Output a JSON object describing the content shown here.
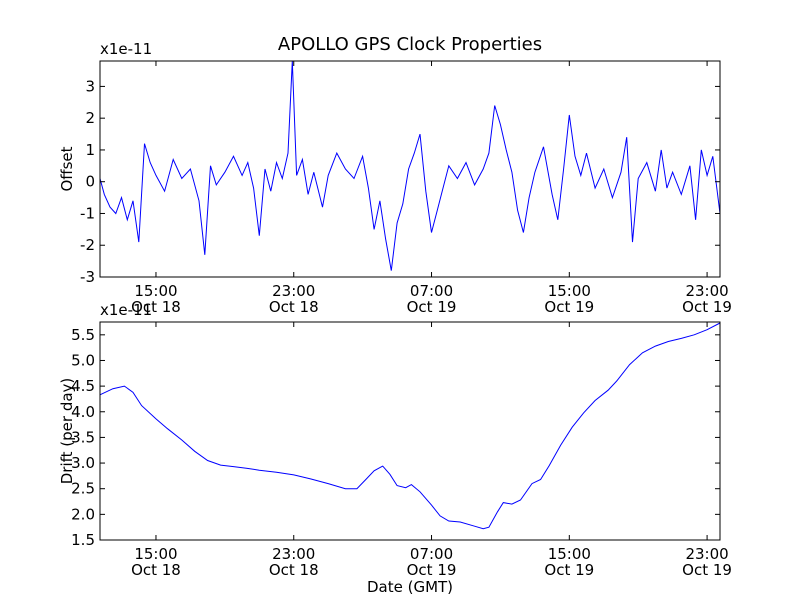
{
  "figure": {
    "title": "APOLLO GPS Clock Properties",
    "line_color": "#0000ff",
    "background": "#ffffff"
  },
  "chart_data": [
    {
      "type": "line",
      "ylabel": "Offset",
      "xlabel": "",
      "y_multiplier": "x1e-11",
      "x_range": [
        "Oct 18 11:45",
        "Oct 19 23:45"
      ],
      "ylim": [
        -3,
        3.8
      ],
      "x_ticks": [
        {
          "time": "Oct 18 15:00",
          "time_label": "15:00",
          "date_label": "Oct 18"
        },
        {
          "time": "Oct 18 23:00",
          "time_label": "23:00",
          "date_label": "Oct 18"
        },
        {
          "time": "Oct 19 07:00",
          "time_label": "07:00",
          "date_label": "Oct 19"
        },
        {
          "time": "Oct 19 15:00",
          "time_label": "15:00",
          "date_label": "Oct 19"
        },
        {
          "time": "Oct 19 23:00",
          "time_label": "23:00",
          "date_label": "Oct 19"
        }
      ],
      "y_ticks": [
        "-3",
        "-2",
        "-1",
        "0",
        "1",
        "2",
        "3"
      ],
      "series": [
        {
          "color": "#0000ff",
          "points": [
            {
              "t": "Oct 18 11:45",
              "y": 0.1
            },
            {
              "t": "Oct 18 12:00",
              "y": -0.4
            },
            {
              "t": "Oct 18 12:20",
              "y": -0.8
            },
            {
              "t": "Oct 18 12:40",
              "y": -1.0
            },
            {
              "t": "Oct 18 13:00",
              "y": -0.5
            },
            {
              "t": "Oct 18 13:20",
              "y": -1.2
            },
            {
              "t": "Oct 18 13:40",
              "y": -0.6
            },
            {
              "t": "Oct 18 14:00",
              "y": -1.9
            },
            {
              "t": "Oct 18 14:20",
              "y": 1.2
            },
            {
              "t": "Oct 18 14:40",
              "y": 0.6
            },
            {
              "t": "Oct 18 15:00",
              "y": 0.2
            },
            {
              "t": "Oct 18 15:30",
              "y": -0.3
            },
            {
              "t": "Oct 18 16:00",
              "y": 0.7
            },
            {
              "t": "Oct 18 16:30",
              "y": 0.1
            },
            {
              "t": "Oct 18 17:00",
              "y": 0.4
            },
            {
              "t": "Oct 18 17:30",
              "y": -0.6
            },
            {
              "t": "Oct 18 17:50",
              "y": -2.3
            },
            {
              "t": "Oct 18 18:10",
              "y": 0.5
            },
            {
              "t": "Oct 18 18:30",
              "y": -0.1
            },
            {
              "t": "Oct 18 19:00",
              "y": 0.3
            },
            {
              "t": "Oct 18 19:30",
              "y": 0.8
            },
            {
              "t": "Oct 18 20:00",
              "y": 0.2
            },
            {
              "t": "Oct 18 20:20",
              "y": 0.6
            },
            {
              "t": "Oct 18 20:40",
              "y": -0.2
            },
            {
              "t": "Oct 18 21:00",
              "y": -1.7
            },
            {
              "t": "Oct 18 21:20",
              "y": 0.4
            },
            {
              "t": "Oct 18 21:40",
              "y": -0.3
            },
            {
              "t": "Oct 18 22:00",
              "y": 0.6
            },
            {
              "t": "Oct 18 22:20",
              "y": 0.1
            },
            {
              "t": "Oct 18 22:40",
              "y": 0.9
            },
            {
              "t": "Oct 18 22:55",
              "y": 3.8
            },
            {
              "t": "Oct 18 23:10",
              "y": 0.2
            },
            {
              "t": "Oct 18 23:30",
              "y": 0.7
            },
            {
              "t": "Oct 18 23:50",
              "y": -0.4
            },
            {
              "t": "Oct 19 00:10",
              "y": 0.3
            },
            {
              "t": "Oct 19 00:40",
              "y": -0.8
            },
            {
              "t": "Oct 19 01:00",
              "y": 0.2
            },
            {
              "t": "Oct 19 01:30",
              "y": 0.9
            },
            {
              "t": "Oct 19 02:00",
              "y": 0.4
            },
            {
              "t": "Oct 19 02:30",
              "y": 0.1
            },
            {
              "t": "Oct 19 03:00",
              "y": 0.8
            },
            {
              "t": "Oct 19 03:20",
              "y": -0.2
            },
            {
              "t": "Oct 19 03:40",
              "y": -1.5
            },
            {
              "t": "Oct 19 04:00",
              "y": -0.6
            },
            {
              "t": "Oct 19 04:20",
              "y": -1.8
            },
            {
              "t": "Oct 19 04:40",
              "y": -2.8
            },
            {
              "t": "Oct 19 05:00",
              "y": -1.3
            },
            {
              "t": "Oct 19 05:20",
              "y": -0.7
            },
            {
              "t": "Oct 19 05:40",
              "y": 0.4
            },
            {
              "t": "Oct 19 06:00",
              "y": 0.9
            },
            {
              "t": "Oct 19 06:20",
              "y": 1.5
            },
            {
              "t": "Oct 19 06:40",
              "y": -0.3
            },
            {
              "t": "Oct 19 07:00",
              "y": -1.6
            },
            {
              "t": "Oct 19 07:20",
              "y": -0.9
            },
            {
              "t": "Oct 19 07:40",
              "y": -0.2
            },
            {
              "t": "Oct 19 08:00",
              "y": 0.5
            },
            {
              "t": "Oct 19 08:30",
              "y": 0.1
            },
            {
              "t": "Oct 19 09:00",
              "y": 0.6
            },
            {
              "t": "Oct 19 09:30",
              "y": -0.1
            },
            {
              "t": "Oct 19 10:00",
              "y": 0.4
            },
            {
              "t": "Oct 19 10:20",
              "y": 0.9
            },
            {
              "t": "Oct 19 10:40",
              "y": 2.4
            },
            {
              "t": "Oct 19 11:00",
              "y": 1.8
            },
            {
              "t": "Oct 19 11:20",
              "y": 1.0
            },
            {
              "t": "Oct 19 11:40",
              "y": 0.3
            },
            {
              "t": "Oct 19 12:00",
              "y": -0.9
            },
            {
              "t": "Oct 19 12:20",
              "y": -1.6
            },
            {
              "t": "Oct 19 12:40",
              "y": -0.5
            },
            {
              "t": "Oct 19 13:00",
              "y": 0.3
            },
            {
              "t": "Oct 19 13:30",
              "y": 1.1
            },
            {
              "t": "Oct 19 14:00",
              "y": -0.4
            },
            {
              "t": "Oct 19 14:20",
              "y": -1.2
            },
            {
              "t": "Oct 19 14:40",
              "y": 0.4
            },
            {
              "t": "Oct 19 15:00",
              "y": 2.1
            },
            {
              "t": "Oct 19 15:20",
              "y": 0.8
            },
            {
              "t": "Oct 19 15:40",
              "y": 0.2
            },
            {
              "t": "Oct 19 16:00",
              "y": 0.9
            },
            {
              "t": "Oct 19 16:30",
              "y": -0.2
            },
            {
              "t": "Oct 19 17:00",
              "y": 0.4
            },
            {
              "t": "Oct 19 17:30",
              "y": -0.5
            },
            {
              "t": "Oct 19 18:00",
              "y": 0.3
            },
            {
              "t": "Oct 19 18:20",
              "y": 1.4
            },
            {
              "t": "Oct 19 18:40",
              "y": -1.9
            },
            {
              "t": "Oct 19 19:00",
              "y": 0.1
            },
            {
              "t": "Oct 19 19:30",
              "y": 0.6
            },
            {
              "t": "Oct 19 20:00",
              "y": -0.3
            },
            {
              "t": "Oct 19 20:20",
              "y": 1.0
            },
            {
              "t": "Oct 19 20:40",
              "y": -0.2
            },
            {
              "t": "Oct 19 21:00",
              "y": 0.3
            },
            {
              "t": "Oct 19 21:30",
              "y": -0.4
            },
            {
              "t": "Oct 19 22:00",
              "y": 0.5
            },
            {
              "t": "Oct 19 22:20",
              "y": -1.2
            },
            {
              "t": "Oct 19 22:40",
              "y": 1.0
            },
            {
              "t": "Oct 19 23:00",
              "y": 0.2
            },
            {
              "t": "Oct 19 23:20",
              "y": 0.8
            },
            {
              "t": "Oct 19 23:45",
              "y": -1.0
            }
          ]
        }
      ]
    },
    {
      "type": "line",
      "ylabel": "Drift (per day)",
      "xlabel": "Date (GMT)",
      "y_multiplier": "x1e-11",
      "x_range": [
        "Oct 18 11:45",
        "Oct 19 23:45"
      ],
      "ylim": [
        1.5,
        5.75
      ],
      "x_ticks": [
        {
          "time": "Oct 18 15:00",
          "time_label": "15:00",
          "date_label": "Oct 18"
        },
        {
          "time": "Oct 18 23:00",
          "time_label": "23:00",
          "date_label": "Oct 18"
        },
        {
          "time": "Oct 19 07:00",
          "time_label": "07:00",
          "date_label": "Oct 19"
        },
        {
          "time": "Oct 19 15:00",
          "time_label": "15:00",
          "date_label": "Oct 19"
        },
        {
          "time": "Oct 19 23:00",
          "time_label": "23:00",
          "date_label": "Oct 19"
        }
      ],
      "y_ticks": [
        "1.5",
        "2.0",
        "2.5",
        "3.0",
        "3.5",
        "4.0",
        "4.5",
        "5.0",
        "5.5"
      ],
      "series": [
        {
          "color": "#0000ff",
          "points": [
            {
              "t": "Oct 18 11:45",
              "y": 4.33
            },
            {
              "t": "Oct 18 12:30",
              "y": 4.45
            },
            {
              "t": "Oct 18 13:10",
              "y": 4.5
            },
            {
              "t": "Oct 18 13:40",
              "y": 4.38
            },
            {
              "t": "Oct 18 14:10",
              "y": 4.12
            },
            {
              "t": "Oct 18 15:00",
              "y": 3.86
            },
            {
              "t": "Oct 18 15:40",
              "y": 3.67
            },
            {
              "t": "Oct 18 16:30",
              "y": 3.45
            },
            {
              "t": "Oct 18 17:15",
              "y": 3.23
            },
            {
              "t": "Oct 18 18:00",
              "y": 3.05
            },
            {
              "t": "Oct 18 18:45",
              "y": 2.96
            },
            {
              "t": "Oct 18 19:30",
              "y": 2.93
            },
            {
              "t": "Oct 18 20:15",
              "y": 2.9
            },
            {
              "t": "Oct 18 21:00",
              "y": 2.86
            },
            {
              "t": "Oct 18 22:00",
              "y": 2.82
            },
            {
              "t": "Oct 18 23:00",
              "y": 2.77
            },
            {
              "t": "Oct 19 00:00",
              "y": 2.69
            },
            {
              "t": "Oct 19 01:00",
              "y": 2.6
            },
            {
              "t": "Oct 19 02:00",
              "y": 2.5
            },
            {
              "t": "Oct 19 02:40",
              "y": 2.5
            },
            {
              "t": "Oct 19 03:15",
              "y": 2.7
            },
            {
              "t": "Oct 19 03:40",
              "y": 2.85
            },
            {
              "t": "Oct 19 04:10",
              "y": 2.94
            },
            {
              "t": "Oct 19 04:35",
              "y": 2.78
            },
            {
              "t": "Oct 19 05:00",
              "y": 2.56
            },
            {
              "t": "Oct 19 05:30",
              "y": 2.52
            },
            {
              "t": "Oct 19 05:50",
              "y": 2.58
            },
            {
              "t": "Oct 19 06:20",
              "y": 2.44
            },
            {
              "t": "Oct 19 07:00",
              "y": 2.18
            },
            {
              "t": "Oct 19 07:30",
              "y": 1.97
            },
            {
              "t": "Oct 19 08:00",
              "y": 1.87
            },
            {
              "t": "Oct 19 08:40",
              "y": 1.85
            },
            {
              "t": "Oct 19 09:30",
              "y": 1.77
            },
            {
              "t": "Oct 19 10:00",
              "y": 1.72
            },
            {
              "t": "Oct 19 10:20",
              "y": 1.75
            },
            {
              "t": "Oct 19 10:50",
              "y": 2.05
            },
            {
              "t": "Oct 19 11:10",
              "y": 2.23
            },
            {
              "t": "Oct 19 11:40",
              "y": 2.2
            },
            {
              "t": "Oct 19 12:10",
              "y": 2.28
            },
            {
              "t": "Oct 19 12:50",
              "y": 2.6
            },
            {
              "t": "Oct 19 13:20",
              "y": 2.68
            },
            {
              "t": "Oct 19 13:50",
              "y": 2.95
            },
            {
              "t": "Oct 19 14:30",
              "y": 3.35
            },
            {
              "t": "Oct 19 15:10",
              "y": 3.7
            },
            {
              "t": "Oct 19 15:50",
              "y": 3.98
            },
            {
              "t": "Oct 19 16:30",
              "y": 4.22
            },
            {
              "t": "Oct 19 17:15",
              "y": 4.42
            },
            {
              "t": "Oct 19 17:45",
              "y": 4.6
            },
            {
              "t": "Oct 19 18:30",
              "y": 4.92
            },
            {
              "t": "Oct 19 19:15",
              "y": 5.15
            },
            {
              "t": "Oct 19 20:00",
              "y": 5.28
            },
            {
              "t": "Oct 19 20:45",
              "y": 5.37
            },
            {
              "t": "Oct 19 21:30",
              "y": 5.43
            },
            {
              "t": "Oct 19 22:15",
              "y": 5.5
            },
            {
              "t": "Oct 19 23:00",
              "y": 5.6
            },
            {
              "t": "Oct 19 23:45",
              "y": 5.73
            }
          ]
        }
      ]
    }
  ]
}
